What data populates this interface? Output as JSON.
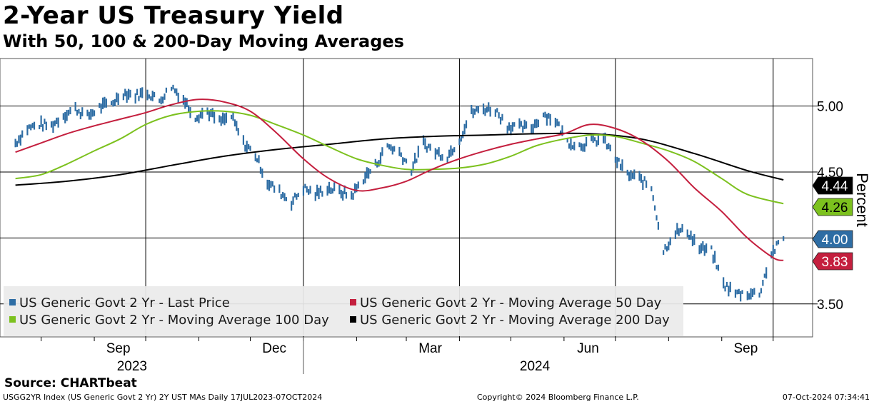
{
  "header": {
    "title": "2-Year US Treasury Yield",
    "subtitle": "With 50, 100 & 200-Day Moving Averages"
  },
  "chart_data": {
    "type": "line",
    "ylabel": "Percent",
    "ylim": [
      3.25,
      5.36
    ],
    "y_ticks": [
      "5.00",
      "4.50",
      "3.50"
    ],
    "x_ticks": [
      "Sep",
      "Dec",
      "Mar",
      "Jun",
      "Sep"
    ],
    "year_labels": [
      "2023",
      "2024"
    ],
    "grid": true,
    "legend_position": "bottom-left",
    "series": [
      {
        "name": "US Generic Govt 2 Yr - Last Price",
        "style": "bars",
        "color": "#2e6da4",
        "last_value": "4.00",
        "points": [
          [
            "2023-07-17",
            4.72
          ],
          [
            "2023-07-24",
            4.83
          ],
          [
            "2023-07-31",
            4.86
          ],
          [
            "2023-08-07",
            4.85
          ],
          [
            "2023-08-14",
            4.93
          ],
          [
            "2023-08-21",
            4.98
          ],
          [
            "2023-08-28",
            4.92
          ],
          [
            "2023-09-04",
            4.99
          ],
          [
            "2023-09-11",
            5.02
          ],
          [
            "2023-09-18",
            5.1
          ],
          [
            "2023-09-25",
            5.08
          ],
          [
            "2023-10-02",
            5.1
          ],
          [
            "2023-10-09",
            5.04
          ],
          [
            "2023-10-16",
            5.15
          ],
          [
            "2023-10-23",
            5.05
          ],
          [
            "2023-10-30",
            4.92
          ],
          [
            "2023-11-06",
            4.96
          ],
          [
            "2023-11-13",
            4.88
          ],
          [
            "2023-11-20",
            4.92
          ],
          [
            "2023-11-27",
            4.72
          ],
          [
            "2023-12-04",
            4.63
          ],
          [
            "2023-12-11",
            4.42
          ],
          [
            "2023-12-18",
            4.35
          ],
          [
            "2023-12-25",
            4.27
          ],
          [
            "2024-01-01",
            4.38
          ],
          [
            "2024-01-08",
            4.33
          ],
          [
            "2024-01-15",
            4.38
          ],
          [
            "2024-01-22",
            4.35
          ],
          [
            "2024-01-29",
            4.32
          ],
          [
            "2024-02-05",
            4.45
          ],
          [
            "2024-02-12",
            4.55
          ],
          [
            "2024-02-19",
            4.7
          ],
          [
            "2024-02-26",
            4.65
          ],
          [
            "2024-03-04",
            4.52
          ],
          [
            "2024-03-11",
            4.72
          ],
          [
            "2024-03-18",
            4.65
          ],
          [
            "2024-03-25",
            4.62
          ],
          [
            "2024-04-01",
            4.75
          ],
          [
            "2024-04-08",
            4.95
          ],
          [
            "2024-04-15",
            4.98
          ],
          [
            "2024-04-22",
            4.97
          ],
          [
            "2024-04-29",
            4.85
          ],
          [
            "2024-05-06",
            4.84
          ],
          [
            "2024-05-13",
            4.83
          ],
          [
            "2024-05-20",
            4.94
          ],
          [
            "2024-05-27",
            4.89
          ],
          [
            "2024-06-03",
            4.73
          ],
          [
            "2024-06-10",
            4.7
          ],
          [
            "2024-06-17",
            4.73
          ],
          [
            "2024-06-24",
            4.75
          ],
          [
            "2024-07-01",
            4.6
          ],
          [
            "2024-07-08",
            4.48
          ],
          [
            "2024-07-15",
            4.45
          ],
          [
            "2024-07-22",
            4.38
          ],
          [
            "2024-07-29",
            3.9
          ],
          [
            "2024-08-05",
            4.05
          ],
          [
            "2024-08-12",
            4.05
          ],
          [
            "2024-08-19",
            3.92
          ],
          [
            "2024-08-26",
            3.9
          ],
          [
            "2024-09-02",
            3.65
          ],
          [
            "2024-09-09",
            3.58
          ],
          [
            "2024-09-16",
            3.58
          ],
          [
            "2024-09-23",
            3.58
          ],
          [
            "2024-09-30",
            3.88
          ],
          [
            "2024-10-07",
            4.0
          ]
        ]
      },
      {
        "name": "US Generic Govt 2 Yr - Moving Average 50 Day",
        "style": "line",
        "color": "#c41f3e",
        "last_value": "3.83",
        "points": [
          [
            "2023-07-17",
            4.65
          ],
          [
            "2023-08-01",
            4.72
          ],
          [
            "2023-08-16",
            4.79
          ],
          [
            "2023-09-01",
            4.85
          ],
          [
            "2023-09-16",
            4.9
          ],
          [
            "2023-10-01",
            4.95
          ],
          [
            "2023-10-16",
            5.01
          ],
          [
            "2023-11-01",
            5.05
          ],
          [
            "2023-11-16",
            5.03
          ],
          [
            "2023-12-01",
            4.96
          ],
          [
            "2023-12-16",
            4.8
          ],
          [
            "2024-01-01",
            4.6
          ],
          [
            "2024-01-16",
            4.45
          ],
          [
            "2024-02-01",
            4.36
          ],
          [
            "2024-02-16",
            4.38
          ],
          [
            "2024-03-01",
            4.43
          ],
          [
            "2024-03-16",
            4.52
          ],
          [
            "2024-04-01",
            4.6
          ],
          [
            "2024-04-16",
            4.66
          ],
          [
            "2024-05-01",
            4.71
          ],
          [
            "2024-05-16",
            4.75
          ],
          [
            "2024-06-01",
            4.79
          ],
          [
            "2024-06-16",
            4.86
          ],
          [
            "2024-07-01",
            4.83
          ],
          [
            "2024-07-16",
            4.74
          ],
          [
            "2024-08-01",
            4.58
          ],
          [
            "2024-08-16",
            4.38
          ],
          [
            "2024-09-01",
            4.2
          ],
          [
            "2024-09-16",
            4.0
          ],
          [
            "2024-10-01",
            3.85
          ],
          [
            "2024-10-07",
            3.83
          ]
        ]
      },
      {
        "name": "US Generic Govt 2 Yr - Moving Average 100 Day",
        "style": "line",
        "color": "#7cc11e",
        "last_value": "4.26",
        "points": [
          [
            "2023-07-17",
            4.45
          ],
          [
            "2023-08-01",
            4.48
          ],
          [
            "2023-08-16",
            4.56
          ],
          [
            "2023-09-01",
            4.66
          ],
          [
            "2023-09-16",
            4.75
          ],
          [
            "2023-10-01",
            4.86
          ],
          [
            "2023-10-16",
            4.93
          ],
          [
            "2023-11-01",
            4.96
          ],
          [
            "2023-11-16",
            4.96
          ],
          [
            "2023-12-01",
            4.93
          ],
          [
            "2023-12-16",
            4.86
          ],
          [
            "2024-01-01",
            4.78
          ],
          [
            "2024-01-16",
            4.69
          ],
          [
            "2024-02-01",
            4.6
          ],
          [
            "2024-02-16",
            4.55
          ],
          [
            "2024-03-01",
            4.52
          ],
          [
            "2024-03-16",
            4.52
          ],
          [
            "2024-04-01",
            4.53
          ],
          [
            "2024-04-16",
            4.56
          ],
          [
            "2024-05-01",
            4.62
          ],
          [
            "2024-05-16",
            4.7
          ],
          [
            "2024-06-01",
            4.75
          ],
          [
            "2024-06-16",
            4.78
          ],
          [
            "2024-07-01",
            4.77
          ],
          [
            "2024-07-16",
            4.72
          ],
          [
            "2024-08-01",
            4.66
          ],
          [
            "2024-08-16",
            4.58
          ],
          [
            "2024-09-01",
            4.45
          ],
          [
            "2024-09-16",
            4.33
          ],
          [
            "2024-10-07",
            4.26
          ]
        ]
      },
      {
        "name": "US Generic Govt 2 Yr - Moving Average 200 Day",
        "style": "line",
        "color": "#000000",
        "last_value": "4.44",
        "points": [
          [
            "2023-07-17",
            4.4
          ],
          [
            "2023-08-16",
            4.43
          ],
          [
            "2023-09-16",
            4.48
          ],
          [
            "2023-10-16",
            4.55
          ],
          [
            "2023-11-16",
            4.62
          ],
          [
            "2023-12-16",
            4.67
          ],
          [
            "2024-01-16",
            4.71
          ],
          [
            "2024-02-16",
            4.75
          ],
          [
            "2024-03-16",
            4.77
          ],
          [
            "2024-04-16",
            4.78
          ],
          [
            "2024-05-16",
            4.79
          ],
          [
            "2024-06-16",
            4.79
          ],
          [
            "2024-07-16",
            4.75
          ],
          [
            "2024-08-16",
            4.64
          ],
          [
            "2024-09-16",
            4.51
          ],
          [
            "2024-10-07",
            4.44
          ]
        ]
      }
    ]
  },
  "footer": {
    "source": "Source: CHARTbeat",
    "info": "USGG2YR Index (US Generic Govt 2 Yr) 2Y UST MAs  Daily 17JUL2023-07OCT2024",
    "copyright": "Copyright© 2024 Bloomberg Finance L.P.",
    "timestamp": "07-Oct-2024 07:34:41"
  },
  "colors": {
    "price": "#2e6da4",
    "ma50": "#c41f3e",
    "ma100": "#7cc11e",
    "ma200": "#000000"
  }
}
